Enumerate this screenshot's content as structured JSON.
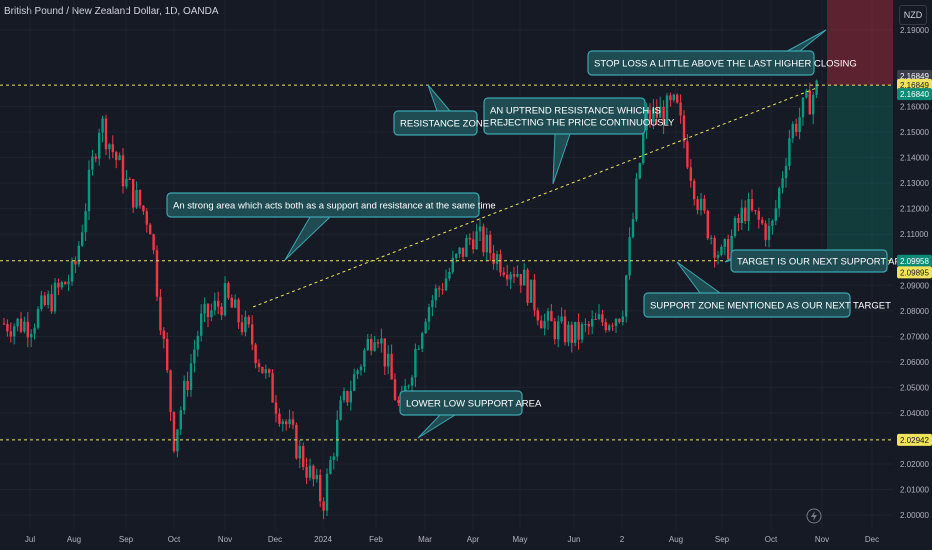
{
  "header": {
    "title": "British Pound / New Zealand Dollar, 1D, OANDA",
    "currency": "NZD"
  },
  "chart_data": {
    "type": "candlestick",
    "title": "British Pound / New Zealand Dollar, 1D, OANDA",
    "ylim": [
      2.0,
      2.19
    ],
    "yticks": [
      "2.19000",
      "2.16000",
      "2.15000",
      "2.14000",
      "2.13000",
      "2.12000",
      "2.11000",
      "2.09000",
      "2.08000",
      "2.07000",
      "2.06000",
      "2.05000",
      "2.04000",
      "2.03000",
      "2.02000",
      "2.01000",
      "2.00000"
    ],
    "x_labels": [
      "Jul",
      "Aug",
      "Sep",
      "Oct",
      "Nov",
      "Dec",
      "2024",
      "Feb",
      "Mar",
      "Apr",
      "May",
      "Jun",
      "2",
      "Aug",
      "Sep",
      "Oct",
      "Nov",
      "Dec"
    ],
    "price_tags": [
      {
        "value": 2.16849,
        "text": "2.16849",
        "style": "grey"
      },
      {
        "value": 2.16849,
        "text": "2.16849",
        "style": "yellow"
      },
      {
        "value": 2.1684,
        "text": "2.16840",
        "style": "teal"
      },
      {
        "value": 2.09958,
        "text": "2.09958",
        "style": "teal"
      },
      {
        "value": 2.09895,
        "text": "2.09895",
        "style": "yellow"
      },
      {
        "value": 2.02942,
        "text": "2.02942",
        "style": "yellow"
      }
    ],
    "horizontal_levels": [
      2.1684,
      2.09958,
      2.02942
    ],
    "position": {
      "entry": 2.1684,
      "stop": 2.19,
      "target": 2.09958
    },
    "trendline": {
      "from": [
        "Nov",
        2.0815
      ],
      "to": [
        "Oct",
        2.1675
      ]
    },
    "annotations": [
      "STOP LOSS A LITTLE ABOVE THE LAST HIGHER CLOSING",
      "AN UPTREND RESISTANCE WHICH IS\nREJECTING THE PRICE CONTINUOUSLY",
      "RESISTANCE ZONE",
      "An strong area which acts both as a support and resistance at the same time",
      "TARGET IS OUR NEXT SUPPORT AREA",
      "SUPPORT ZONE MENTIONED AS OUR NEXT TARGET",
      "LOWER LOW SUPPORT AREA"
    ],
    "path_anchors": [
      [
        "Jul",
        2.075
      ],
      [
        "Aug",
        2.095
      ],
      [
        "Aug+",
        2.155
      ],
      [
        "Sep",
        2.13
      ],
      [
        "Sep+",
        2.115
      ],
      [
        "Oct",
        2.03
      ],
      [
        "Oct+",
        2.075
      ],
      [
        "Nov",
        2.085
      ],
      [
        "Nov+",
        2.07
      ],
      [
        "Dec",
        2.045
      ],
      [
        "2024",
        2.005
      ],
      [
        "2024+",
        2.04
      ],
      [
        "Feb",
        2.075
      ],
      [
        "Feb+",
        2.04
      ],
      [
        "Mar",
        2.08
      ],
      [
        "Apr",
        2.11
      ],
      [
        "Apr+",
        2.1
      ],
      [
        "May",
        2.095
      ],
      [
        "May+",
        2.075
      ],
      [
        "Jun",
        2.07
      ],
      [
        "2",
        2.08
      ],
      [
        "2+",
        2.155
      ],
      [
        "Aug",
        2.16
      ],
      [
        "Aug+",
        2.12
      ],
      [
        "Sep",
        2.1
      ],
      [
        "Sep+",
        2.12
      ],
      [
        "Oct",
        2.11
      ],
      [
        "Oct+",
        2.15
      ],
      [
        "Nov",
        2.168
      ]
    ]
  }
}
